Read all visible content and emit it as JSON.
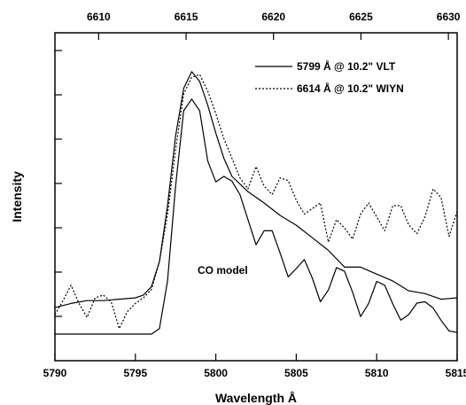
{
  "chart_data": {
    "type": "line",
    "title": "",
    "xlabel": "Wavelength Å",
    "ylabel": "Intensity",
    "x_bottom": {
      "range": [
        5790,
        5815
      ],
      "ticks": [
        5790,
        5795,
        5800,
        5805,
        5810,
        5815
      ],
      "tick_labels": [
        "5790",
        "5795",
        "5800",
        "5805",
        "5810",
        "5815"
      ]
    },
    "x_top": {
      "range": [
        6607.5,
        6630.5
      ],
      "ticks": [
        6610,
        6615,
        6620,
        6625,
        6630
      ],
      "tick_labels": [
        "6610",
        "6615",
        "6620",
        "6625",
        "6630"
      ]
    },
    "y_range": [
      0,
      1
    ],
    "grid": false,
    "legend_position": "top-right",
    "series": [
      {
        "name": "5799 Å @ 10.2\" VLT",
        "style": "solid",
        "axis": "bottom",
        "x": [
          5790,
          5791,
          5792,
          5793,
          5794,
          5795,
          5795.5,
          5796,
          5796.5,
          5797,
          5797.5,
          5798,
          5798.5,
          5799,
          5799.5,
          5800,
          5800.5,
          5801,
          5802,
          5803,
          5804,
          5805,
          5806,
          5807,
          5808,
          5809,
          5810,
          5811,
          5812,
          5813,
          5814,
          5815
        ],
        "values": [
          0.095,
          0.11,
          0.12,
          0.12,
          0.125,
          0.13,
          0.14,
          0.17,
          0.26,
          0.46,
          0.71,
          0.88,
          0.94,
          0.905,
          0.82,
          0.72,
          0.63,
          0.565,
          0.51,
          0.47,
          0.425,
          0.39,
          0.345,
          0.3,
          0.24,
          0.24,
          0.215,
          0.19,
          0.155,
          0.145,
          0.125,
          0.13
        ]
      },
      {
        "name": "6614 Å @ 10.2\" WIYN",
        "style": "dotted",
        "axis": "bottom",
        "x": [
          5790,
          5790.5,
          5791,
          5791.5,
          5792,
          5792.5,
          5793,
          5793.5,
          5794,
          5794.5,
          5795,
          5795.5,
          5796,
          5796.5,
          5797,
          5797.5,
          5798,
          5798.5,
          5799,
          5799.5,
          5800,
          5800.5,
          5801,
          5801.5,
          5802,
          5802.5,
          5803,
          5803.5,
          5804,
          5804.5,
          5805,
          5805.5,
          5806,
          5806.5,
          5807,
          5807.5,
          5808,
          5808.5,
          5809,
          5809.5,
          5810,
          5810.5,
          5811,
          5811.5,
          5812,
          5812.5,
          5813,
          5813.5,
          5814,
          5814.5,
          5815
        ],
        "values": [
          0.07,
          0.12,
          0.175,
          0.11,
          0.06,
          0.13,
          0.14,
          0.115,
          0.02,
          0.08,
          0.11,
          0.13,
          0.16,
          0.26,
          0.43,
          0.66,
          0.86,
          0.92,
          0.93,
          0.87,
          0.79,
          0.7,
          0.63,
          0.56,
          0.52,
          0.6,
          0.53,
          0.5,
          0.56,
          0.55,
          0.48,
          0.43,
          0.45,
          0.47,
          0.33,
          0.41,
          0.38,
          0.34,
          0.43,
          0.47,
          0.42,
          0.37,
          0.46,
          0.46,
          0.39,
          0.36,
          0.42,
          0.52,
          0.49,
          0.35,
          0.44
        ]
      },
      {
        "name": "CO model",
        "style": "solid",
        "axis": "bottom",
        "x": [
          5790,
          5793,
          5796,
          5796.5,
          5797,
          5797.5,
          5798,
          5798.5,
          5799,
          5799.5,
          5800,
          5800.5,
          5801,
          5801.5,
          5802,
          5802.5,
          5803,
          5803.5,
          5804,
          5804.5,
          5805,
          5805.5,
          5806,
          5806.5,
          5807,
          5807.5,
          5808,
          5808.5,
          5809,
          5809.5,
          5810,
          5810.5,
          5811,
          5811.5,
          5812,
          5812.5,
          5813,
          5813.5,
          5814,
          5814.5,
          5815
        ],
        "values": [
          0,
          0,
          0.0,
          0.02,
          0.19,
          0.53,
          0.8,
          0.842,
          0.8,
          0.62,
          0.545,
          0.565,
          0.548,
          0.5,
          0.41,
          0.32,
          0.37,
          0.37,
          0.29,
          0.205,
          0.235,
          0.267,
          0.2,
          0.116,
          0.158,
          0.238,
          0.225,
          0.15,
          0.063,
          0.11,
          0.189,
          0.175,
          0.108,
          0.05,
          0.07,
          0.111,
          0.116,
          0.094,
          0.05,
          0.011,
          0.006
        ]
      }
    ],
    "legend": [
      {
        "label": "5799 Å @ 10.2\" VLT",
        "style": "solid"
      },
      {
        "label": "6614 Å @ 10.2\" WIYN",
        "style": "dotted"
      }
    ],
    "annotations": [
      {
        "text": "CO model"
      }
    ]
  }
}
